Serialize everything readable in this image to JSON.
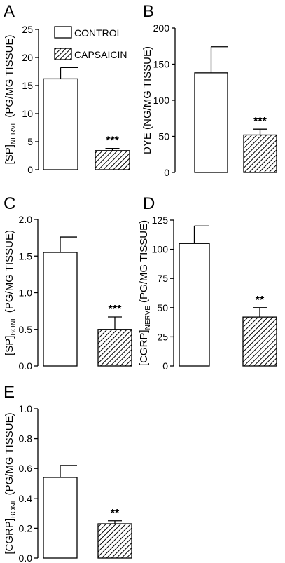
{
  "legend": {
    "control": "CONTROL",
    "capsaicin": "CAPSAICIN"
  },
  "chart_data": [
    {
      "panel": "A",
      "type": "bar",
      "categories": [
        "CONTROL",
        "CAPSAICIN"
      ],
      "values": [
        16.2,
        3.4
      ],
      "errors": [
        2.0,
        0.4
      ],
      "significance": [
        "",
        "***"
      ],
      "ylabel": {
        "pre": "[SP]",
        "sub": "NERVE",
        "post": " (PG/MG TISSUE)"
      },
      "ylim": [
        0,
        25
      ],
      "yticks": [
        0,
        5,
        10,
        15,
        20,
        25
      ],
      "tick_labels": [
        "0",
        "5",
        "10",
        "15",
        "20",
        "25"
      ],
      "legend_placement": "top-right"
    },
    {
      "panel": "B",
      "type": "bar",
      "categories": [
        "CONTROL",
        "CAPSAICIN"
      ],
      "values": [
        138,
        52
      ],
      "errors": [
        36,
        8
      ],
      "significance": [
        "",
        "***"
      ],
      "ylabel": {
        "pre": "DYE (NG/MG TISSUE)",
        "sub": "",
        "post": ""
      },
      "ylim": [
        0,
        200
      ],
      "yticks": [
        0,
        50,
        100,
        150,
        200
      ],
      "tick_labels": [
        "0",
        "50",
        "100",
        "150",
        "200"
      ]
    },
    {
      "panel": "C",
      "type": "bar",
      "categories": [
        "CONTROL",
        "CAPSAICIN"
      ],
      "values": [
        1.55,
        0.5
      ],
      "errors": [
        0.21,
        0.17
      ],
      "significance": [
        "",
        "***"
      ],
      "ylabel": {
        "pre": "[SP]",
        "sub": "BONE",
        "post": " (PG/MG TISSUE)"
      },
      "ylim": [
        0,
        2.0
      ],
      "yticks": [
        0,
        0.5,
        1.0,
        1.5,
        2.0
      ],
      "tick_labels": [
        "0.0",
        "0.5",
        "1.0",
        "1.5",
        "2.0"
      ]
    },
    {
      "panel": "D",
      "type": "bar",
      "categories": [
        "CONTROL",
        "CAPSAICIN"
      ],
      "values": [
        105,
        42
      ],
      "errors": [
        15,
        8
      ],
      "significance": [
        "",
        "**"
      ],
      "ylabel": {
        "pre": "[CGRP]",
        "sub": "NERVE",
        "post": " (PG/MG TISSUE)"
      },
      "ylim": [
        0,
        125
      ],
      "yticks": [
        0,
        25,
        50,
        75,
        100,
        125
      ],
      "tick_labels": [
        "0",
        "25",
        "50",
        "75",
        "100",
        "125"
      ]
    },
    {
      "panel": "E",
      "type": "bar",
      "categories": [
        "CONTROL",
        "CAPSAICIN"
      ],
      "values": [
        0.54,
        0.23
      ],
      "errors": [
        0.08,
        0.02
      ],
      "significance": [
        "",
        "**"
      ],
      "ylabel": {
        "pre": "[CGRP]",
        "sub": "BONE",
        "post": " (PG/MG TISSUE)"
      },
      "ylim": [
        0,
        1.0
      ],
      "yticks": [
        0,
        0.2,
        0.4,
        0.6,
        0.8,
        1.0
      ],
      "tick_labels": [
        "0.0",
        "0.2",
        "0.4",
        "0.6",
        "0.8",
        "1.0"
      ]
    }
  ]
}
